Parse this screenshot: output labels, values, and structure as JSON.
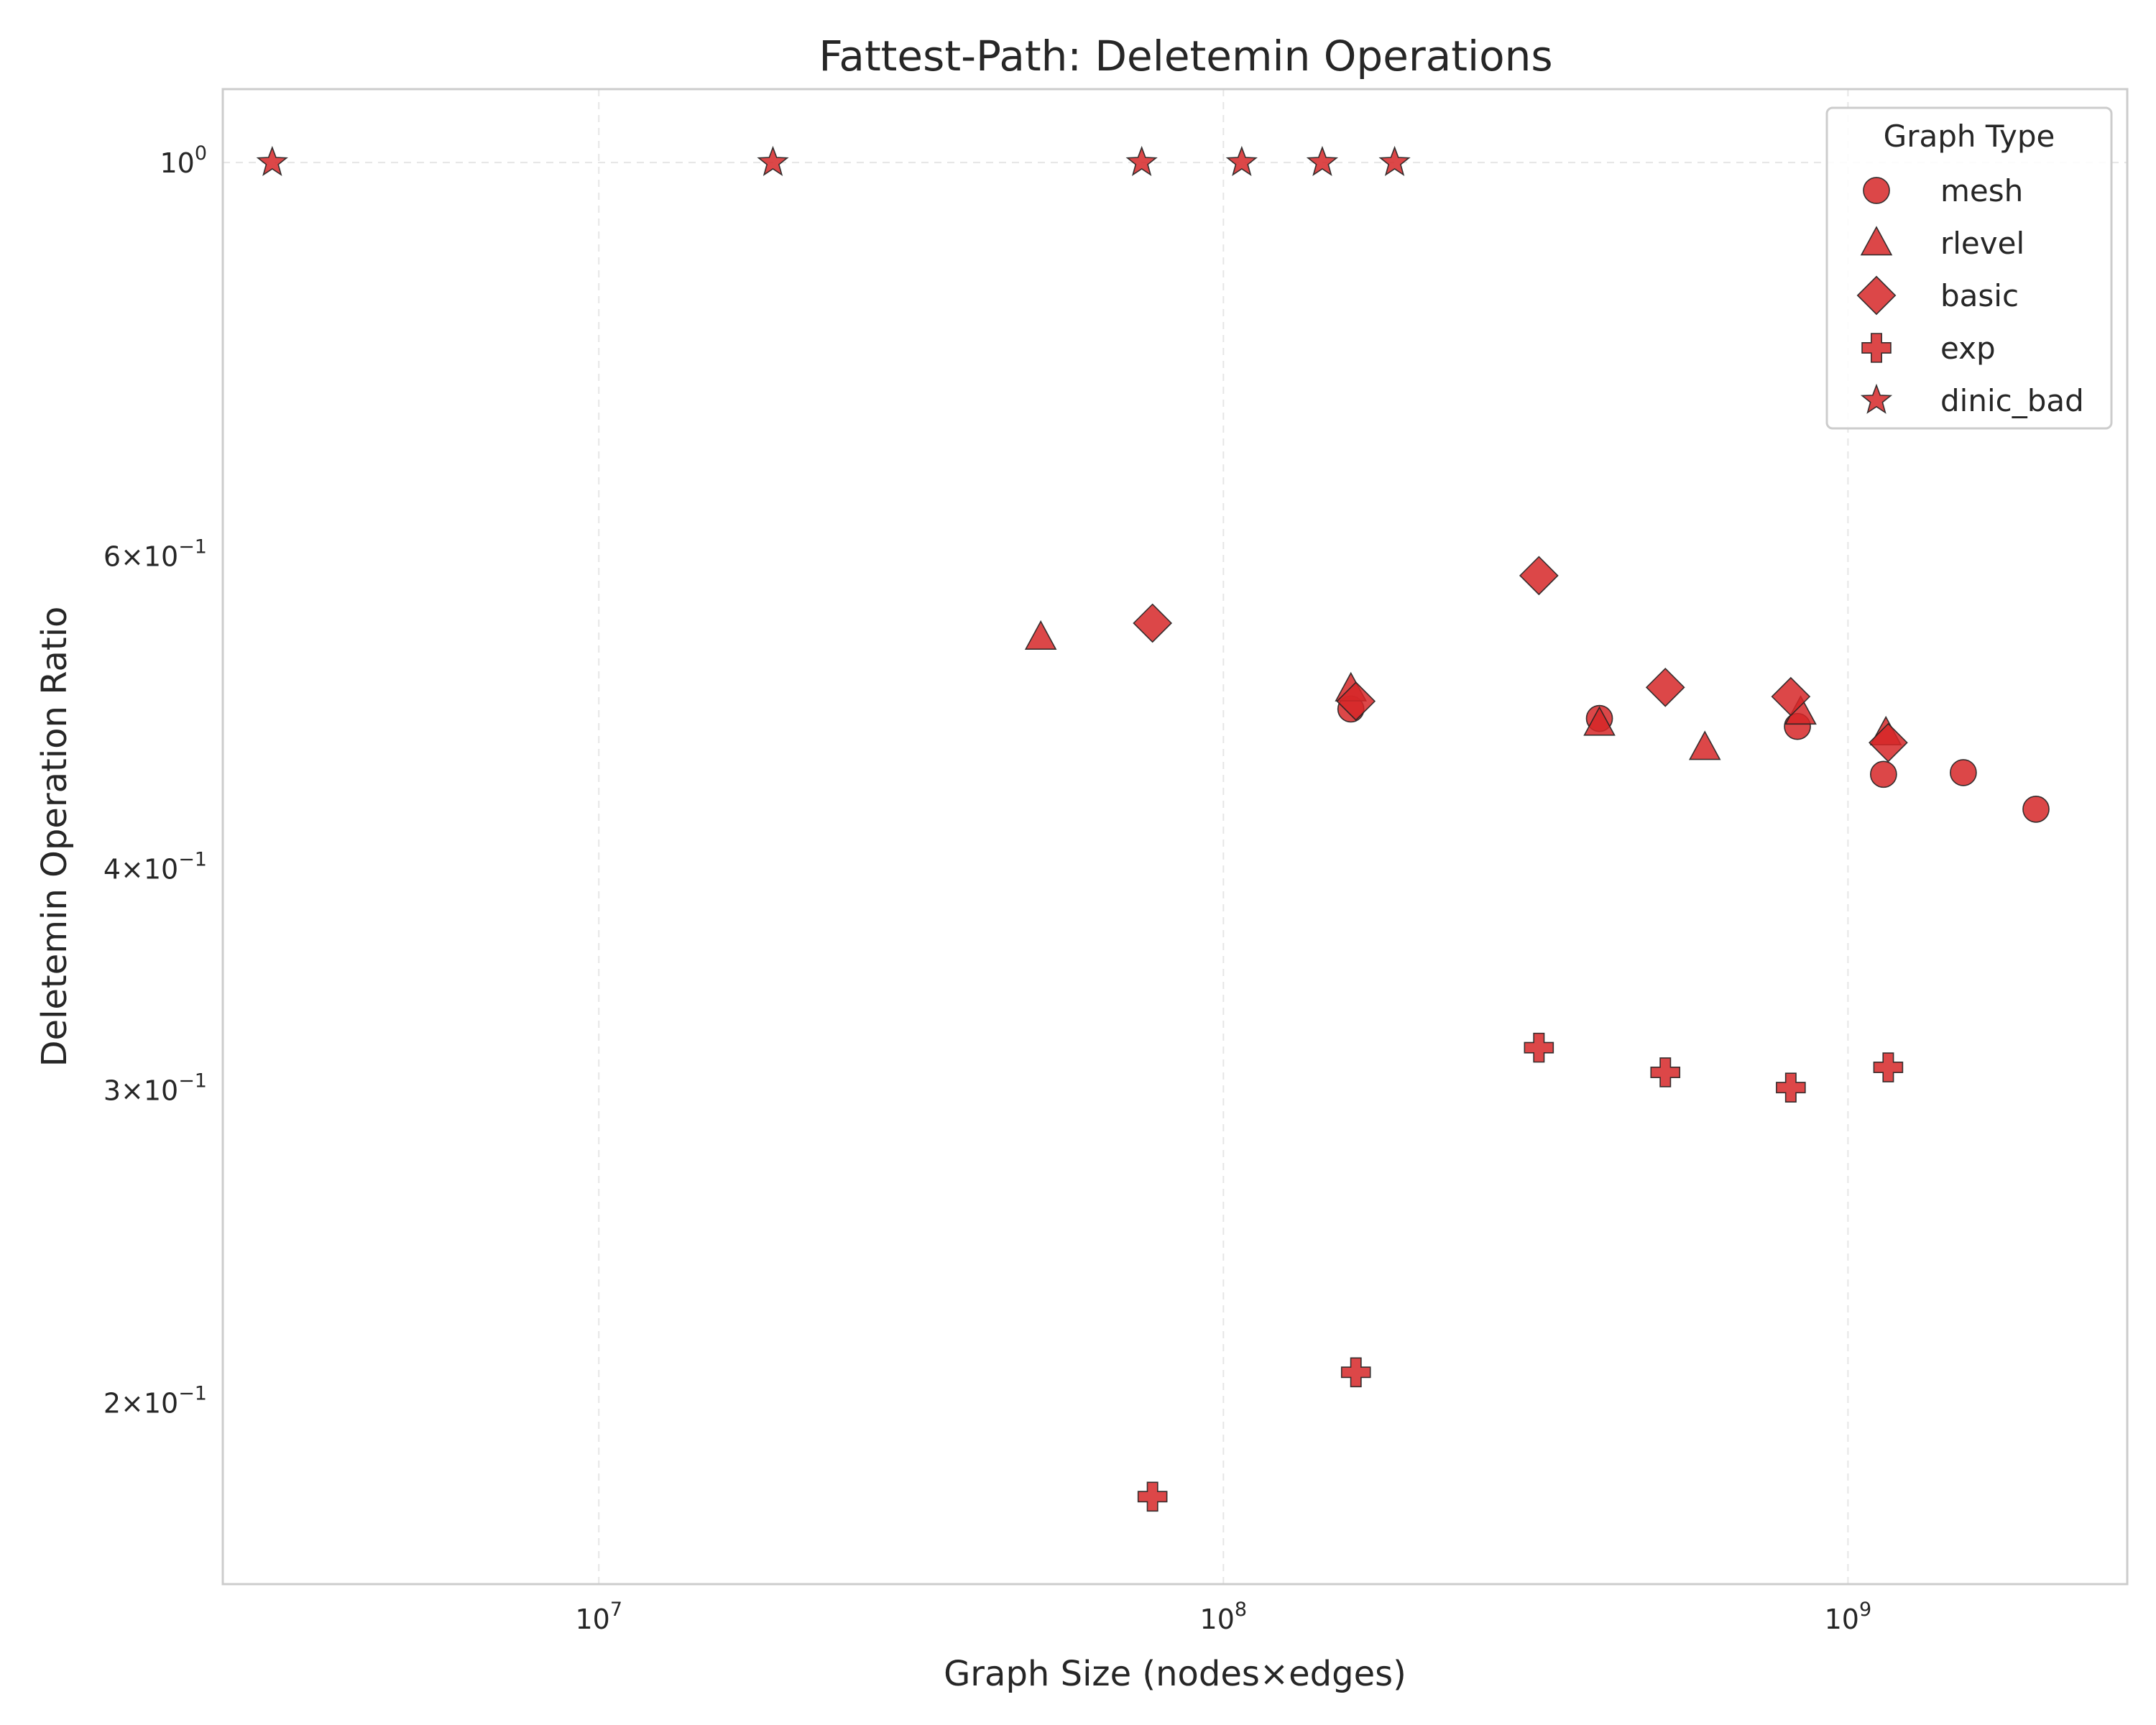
{
  "chart_data": {
    "type": "scatter",
    "title": "Fattest-Path: Deletemin Operations",
    "xlabel": "Graph Size (nodes×edges)",
    "ylabel": "Deletemin Operation Ratio",
    "x_scale": "log",
    "y_scale": "log",
    "xlim": [
      2500000,
      2800000000
    ],
    "ylim": [
      0.158,
      1.1
    ],
    "x_ticks": [
      {
        "value": 10000000,
        "base": "10",
        "exp": "7"
      },
      {
        "value": 100000000,
        "base": "10",
        "exp": "8"
      },
      {
        "value": 1000000000,
        "base": "10",
        "exp": "9"
      }
    ],
    "y_ticks": [
      {
        "value": 1.0,
        "base": "10",
        "exp": "0"
      },
      {
        "value": 0.6,
        "base": "6×10",
        "exp": "−1"
      },
      {
        "value": 0.4,
        "base": "4×10",
        "exp": "−1"
      },
      {
        "value": 0.3,
        "base": "3×10",
        "exp": "−1"
      },
      {
        "value": 0.2,
        "base": "2×10",
        "exp": "−1"
      }
    ],
    "grid": true,
    "legend": {
      "title": "Graph Type",
      "position": "top-right"
    },
    "color": "#d62728",
    "series": [
      {
        "name": "mesh",
        "marker": "circle",
        "points": [
          [
            160000000,
            0.492
          ],
          [
            400000000,
            0.486
          ],
          [
            830000000,
            0.481
          ],
          [
            1140000000,
            0.452
          ],
          [
            1530000000,
            0.453
          ],
          [
            2000000000,
            0.432
          ]
        ]
      },
      {
        "name": "rlevel",
        "marker": "triangle",
        "points": [
          [
            51000000,
            0.54
          ],
          [
            160000000,
            0.505
          ],
          [
            400000000,
            0.483
          ],
          [
            590000000,
            0.468
          ],
          [
            840000000,
            0.49
          ],
          [
            1150000000,
            0.477
          ]
        ]
      },
      {
        "name": "basic",
        "marker": "diamond",
        "points": [
          [
            77000000,
            0.55
          ],
          [
            163000000,
            0.497
          ],
          [
            320000000,
            0.585
          ],
          [
            510000000,
            0.506
          ],
          [
            810000000,
            0.5
          ],
          [
            1160000000,
            0.471
          ]
        ]
      },
      {
        "name": "exp",
        "marker": "plus",
        "points": [
          [
            77000000,
            0.177
          ],
          [
            163000000,
            0.208
          ],
          [
            320000000,
            0.317
          ],
          [
            510000000,
            0.307
          ],
          [
            810000000,
            0.301
          ],
          [
            1160000000,
            0.309
          ]
        ]
      },
      {
        "name": "dinic_bad",
        "marker": "star",
        "points": [
          [
            3000000,
            1.0
          ],
          [
            19000000,
            1.0
          ],
          [
            74000000,
            1.0
          ],
          [
            107000000,
            1.0
          ],
          [
            144000000,
            1.0
          ],
          [
            188000000,
            1.0
          ]
        ]
      }
    ]
  }
}
